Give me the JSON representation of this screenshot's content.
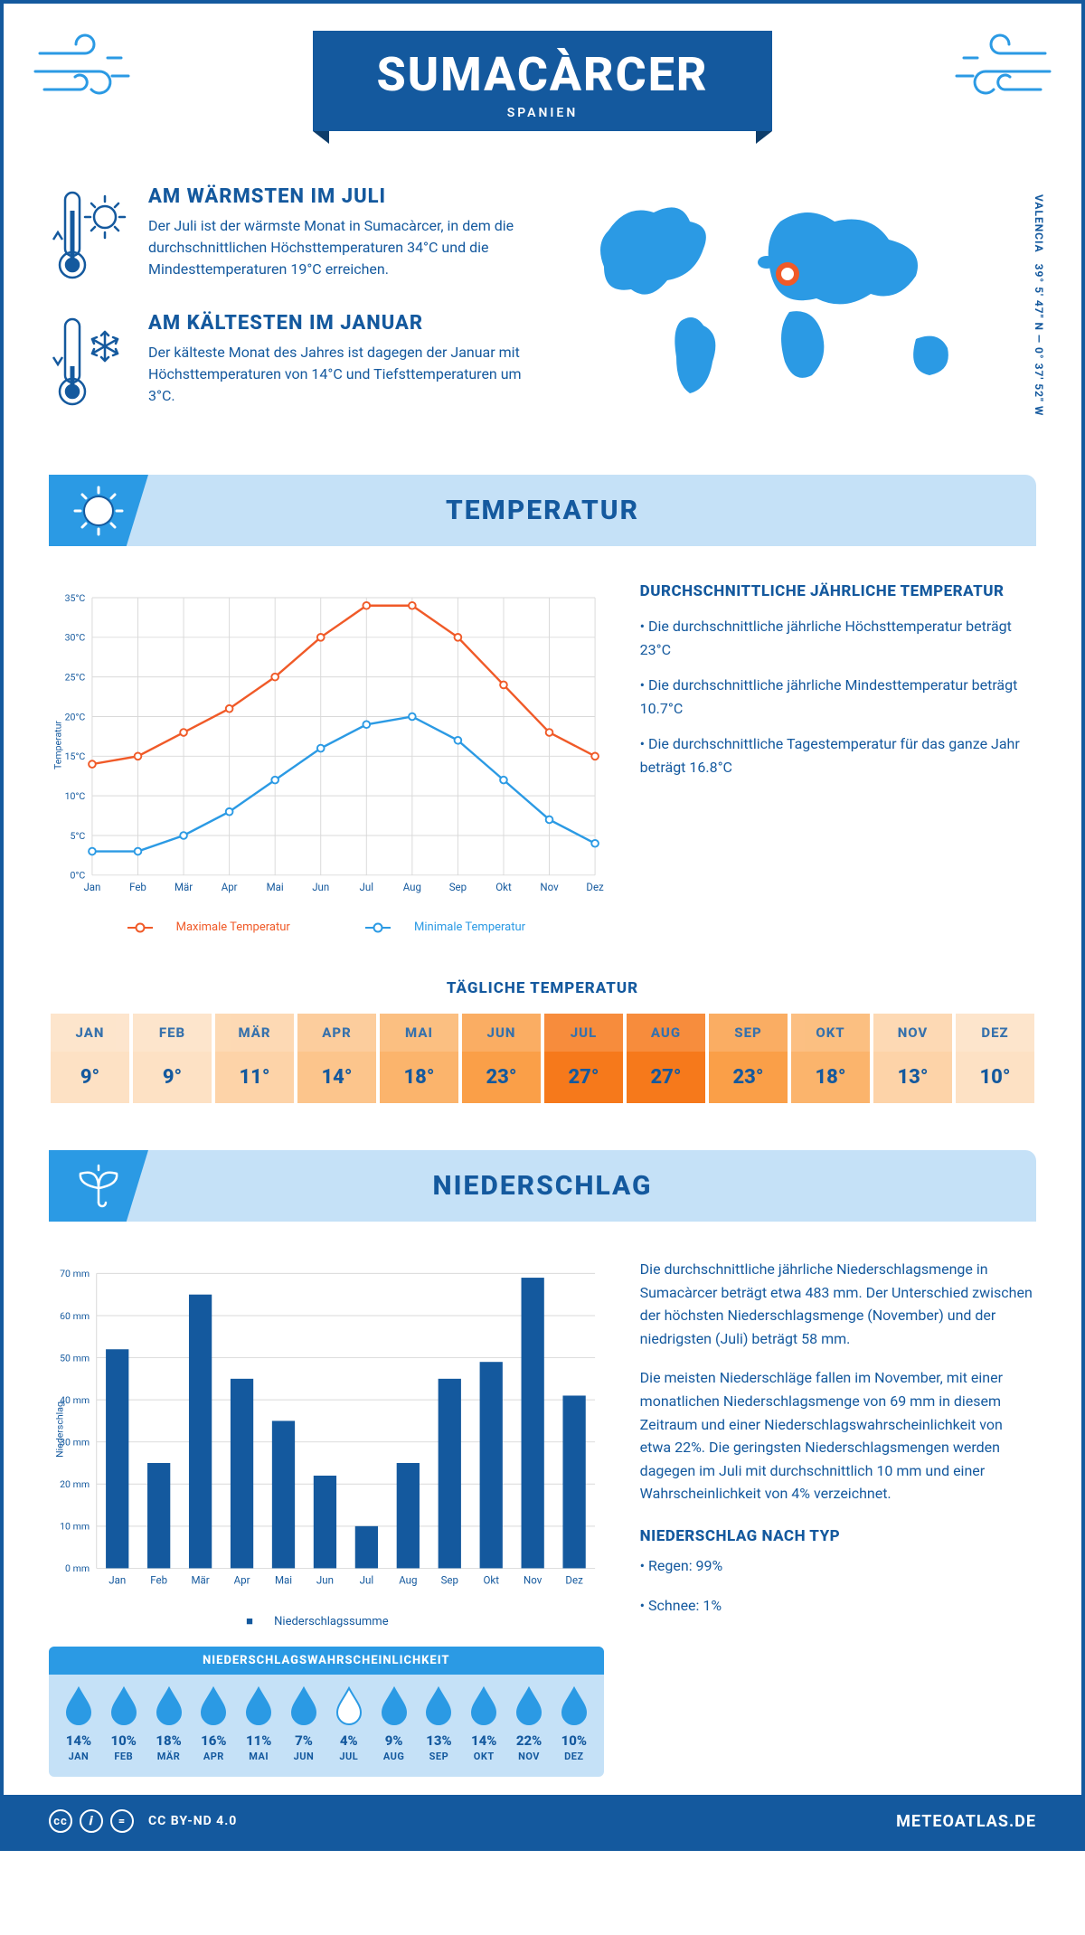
{
  "header": {
    "title": "SUMACÀRCER",
    "country": "SPANIEN"
  },
  "coords": {
    "lat": "39° 5' 47\" N",
    "lon": "0° 37' 52\" W",
    "region": "VALENCIA"
  },
  "facts": {
    "warm": {
      "title": "AM WÄRMSTEN IM JULI",
      "text": "Der Juli ist der wärmste Monat in Sumacàrcer, in dem die durchschnittlichen Höchsttemperaturen 34°C und die Mindesttemperaturen 19°C erreichen."
    },
    "cold": {
      "title": "AM KÄLTESTEN IM JANUAR",
      "text": "Der kälteste Monat des Jahres ist dagegen der Januar mit Höchsttemperaturen von 14°C und Tiefsttemperaturen um 3°C."
    }
  },
  "sections": {
    "temp": "TEMPERATUR",
    "precip": "NIEDERSCHLAG"
  },
  "months": [
    "Jan",
    "Feb",
    "Mär",
    "Apr",
    "Mai",
    "Jun",
    "Jul",
    "Aug",
    "Sep",
    "Okt",
    "Nov",
    "Dez"
  ],
  "months_uc": [
    "JAN",
    "FEB",
    "MÄR",
    "APR",
    "MAI",
    "JUN",
    "JUL",
    "AUG",
    "SEP",
    "OKT",
    "NOV",
    "DEZ"
  ],
  "temp_chart": {
    "ylabel": "Temperatur",
    "ymin": 0,
    "ymax": 35,
    "ystep": 5,
    "yunit": "°C",
    "max_series": {
      "label": "Maximale Temperatur",
      "color": "#f05a28",
      "values": [
        14,
        15,
        18,
        21,
        25,
        30,
        34,
        34,
        30,
        24,
        18,
        15
      ]
    },
    "min_series": {
      "label": "Minimale Temperatur",
      "color": "#2b9ae4",
      "values": [
        3,
        3,
        5,
        8,
        12,
        16,
        19,
        20,
        17,
        12,
        7,
        4
      ]
    },
    "grid_color": "#d9d9d9"
  },
  "temp_text": {
    "heading": "DURCHSCHNITTLICHE JÄHRLICHE TEMPERATUR",
    "b1": "• Die durchschnittliche jährliche Höchsttemperatur beträgt 23°C",
    "b2": "• Die durchschnittliche jährliche Mindesttemperatur beträgt 10.7°C",
    "b3": "• Die durchschnittliche Tagestemperatur für das ganze Jahr beträgt 16.8°C"
  },
  "daily": {
    "title": "TÄGLICHE TEMPERATUR",
    "values": [
      "9°",
      "9°",
      "11°",
      "14°",
      "18°",
      "23°",
      "27°",
      "27°",
      "23°",
      "18°",
      "13°",
      "10°"
    ],
    "bg_colors": [
      "#fde1c4",
      "#fde1c4",
      "#fdd3a8",
      "#fcc58c",
      "#fbb46c",
      "#fa9f48",
      "#f6791b",
      "#f6791b",
      "#fa9f48",
      "#fbb46c",
      "#fdd3a8",
      "#fde1c4"
    ]
  },
  "precip_chart": {
    "ylabel": "Niederschlag",
    "ymin": 0,
    "ymax": 70,
    "ystep": 10,
    "yunit": " mm",
    "values": [
      52,
      25,
      65,
      45,
      35,
      22,
      10,
      25,
      45,
      49,
      69,
      41
    ],
    "bar_color": "#14599e",
    "grid_color": "#d9d9d9",
    "legend": "Niederschlagssumme"
  },
  "precip_text": {
    "p1": "Die durchschnittliche jährliche Niederschlagsmenge in Sumacàrcer beträgt etwa 483 mm. Der Unterschied zwischen der höchsten Niederschlagsmenge (November) und der niedrigsten (Juli) beträgt 58 mm.",
    "p2": "Die meisten Niederschläge fallen im November, mit einer monatlichen Niederschlagsmenge von 69 mm in diesem Zeitraum und einer Niederschlagswahrscheinlichkeit von etwa 22%. Die geringsten Niederschlagsmengen werden dagegen im Juli mit durchschnittlich 10 mm und einer Wahrscheinlichkeit von 4% verzeichnet.",
    "type_heading": "NIEDERSCHLAG NACH TYP",
    "t1": "• Regen: 99%",
    "t2": "• Schnee: 1%"
  },
  "prob": {
    "title": "NIEDERSCHLAGSWAHRSCHEINLICHKEIT",
    "values": [
      "14%",
      "10%",
      "18%",
      "16%",
      "11%",
      "7%",
      "4%",
      "9%",
      "13%",
      "14%",
      "22%",
      "10%"
    ],
    "min_index": 6,
    "drop_fill": "#2b9ae4",
    "drop_empty": "#ffffff",
    "drop_stroke": "#2b9ae4"
  },
  "footer": {
    "license": "CC BY-ND 4.0",
    "brand": "METEOATLAS.DE"
  },
  "colors": {
    "primary": "#14599e",
    "accent": "#2b9ae4",
    "light": "#c5e1f7"
  }
}
